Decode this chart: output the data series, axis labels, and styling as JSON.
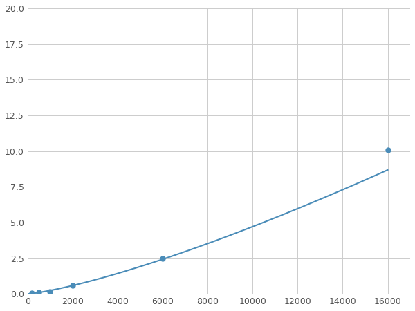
{
  "x": [
    200,
    500,
    1000,
    2000,
    6000,
    16000
  ],
  "y": [
    0.04,
    0.09,
    0.15,
    0.58,
    2.5,
    10.1
  ],
  "line_color": "#4a8cb8",
  "marker_color": "#4a8cb8",
  "marker_size": 5,
  "xlim": [
    0,
    17000
  ],
  "ylim": [
    0,
    20
  ],
  "xticks": [
    0,
    2000,
    4000,
    6000,
    8000,
    10000,
    12000,
    14000,
    16000
  ],
  "yticks": [
    0.0,
    2.5,
    5.0,
    7.5,
    10.0,
    12.5,
    15.0,
    17.5,
    20.0
  ],
  "grid": true,
  "background_color": "#ffffff",
  "figsize": [
    6.0,
    4.5
  ],
  "dpi": 100
}
